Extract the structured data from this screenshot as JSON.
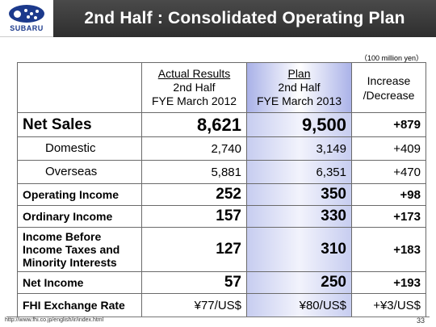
{
  "header": {
    "logo_text": "SUBARU",
    "title": "2nd Half : Consolidated Operating Plan"
  },
  "unit_note": "（100 million yen）",
  "columns": {
    "actual": {
      "line1": "Actual Results",
      "line2": "2nd Half",
      "line3": "FYE March 2012"
    },
    "plan": {
      "line1": "Plan",
      "line2": "2nd Half",
      "line3": "FYE March 2013"
    },
    "increase": {
      "line1": "Increase",
      "line2": "/Decrease"
    }
  },
  "rows": [
    {
      "label": "Net Sales",
      "actual": "8,621",
      "plan": "9,500",
      "change": "+879"
    },
    {
      "label": "Domestic",
      "actual": "2,740",
      "plan": "3,149",
      "change": "+409"
    },
    {
      "label": "Overseas",
      "actual": "5,881",
      "plan": "6,351",
      "change": "+470"
    },
    {
      "label": "Operating Income",
      "actual": "252",
      "plan": "350",
      "change": "+98"
    },
    {
      "label": "Ordinary Income",
      "actual": "157",
      "plan": "330",
      "change": "+173"
    },
    {
      "label_lines": [
        "Income Before",
        "Income Taxes and",
        "Minority Interests"
      ],
      "actual": "127",
      "plan": "310",
      "change": "+183"
    },
    {
      "label": "Net Income",
      "actual": "57",
      "plan": "250",
      "change": "+193"
    },
    {
      "label": "FHI Exchange Rate",
      "actual": "¥77/US$",
      "plan": "¥80/US$",
      "change": "+¥3/US$"
    }
  ],
  "footer": {
    "url": "http://www.fhi.co.jp/english/ir/index.html",
    "page": "33"
  },
  "colors": {
    "title_bar": "#3a3a3a",
    "logo_blue": "#1c3a8c",
    "plan_column_tint": "#c7cdf0"
  }
}
